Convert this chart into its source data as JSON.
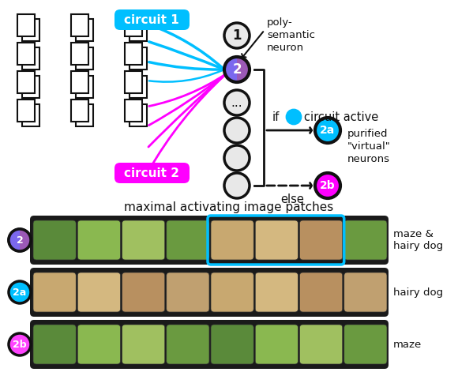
{
  "title": "maximal activating image patches",
  "circuit1_label": "circuit 1",
  "circuit2_label": "circuit 2",
  "circuit1_color": "#00BFFF",
  "circuit2_color": "#FF00FF",
  "neuron2_gradient_start": "#00BFFF",
  "neuron2_gradient_end": "#CC44CC",
  "neuron2a_color": "#00BFFF",
  "neuron2b_color": "#FF44FF",
  "poly_semantic_text": "poly-\nsemantic\nneuron",
  "purified_text": "purified\n\"virtual\"\nneurons",
  "if_text": "if",
  "circuit_active_text": "circuit active",
  "else_text": "else",
  "row_labels": [
    "2",
    "2a",
    "2b"
  ],
  "row_side_labels": [
    "maze &\nhairy dog",
    "hairy dog",
    "maze"
  ],
  "row_label_colors": [
    "#9944CC",
    "#00BFFF",
    "#FF44FF"
  ],
  "row_label_bg_colors": [
    "#FFFFFF",
    "#00BFFF",
    "#FF44FF"
  ],
  "highlight_box_color": "#00BFFF",
  "bg_color": "#FFFFFF"
}
